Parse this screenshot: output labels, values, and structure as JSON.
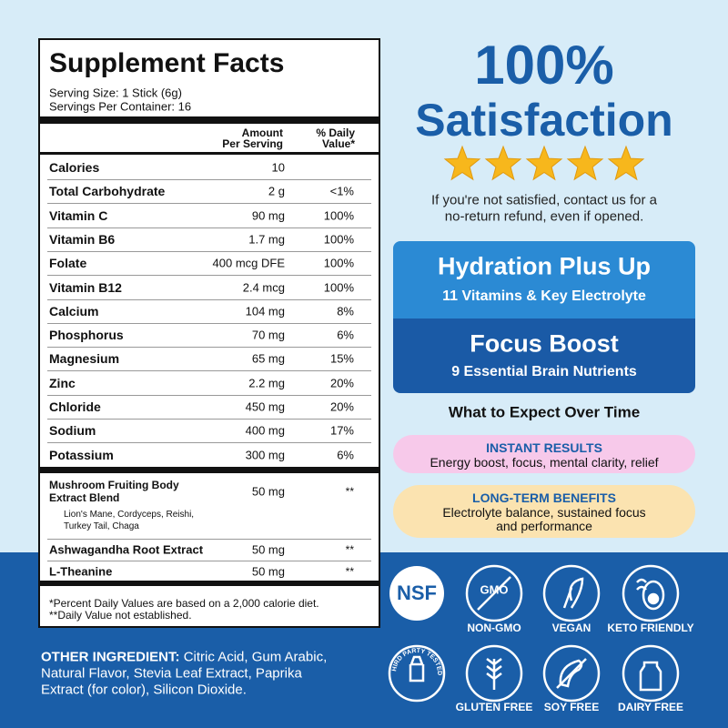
{
  "facts": {
    "title": "Supplement Facts",
    "serving_size": "Serving Size: 1 Stick (6g)",
    "servings": "Servings Per Container: 16",
    "header_amount": [
      "Amount",
      "Per Serving"
    ],
    "header_dv": [
      "% Daily",
      "Value*"
    ],
    "rows": [
      {
        "name": "Calories",
        "amount": "10"
      },
      {
        "name": "Total Carbohydrate",
        "amount": "2 g",
        "dv": "<1%"
      },
      {
        "name": "Vitamin C",
        "amount": "90 mg",
        "dv": "100%"
      },
      {
        "name": "Vitamin B6",
        "amount": "1.7 mg",
        "dv": "100%"
      },
      {
        "name": "Folate",
        "amount": "400 mcg DFE",
        "dv": "100%"
      },
      {
        "name": "Vitamin B12",
        "amount": "2.4 mcg",
        "dv": "100%"
      },
      {
        "name": "Calcium",
        "amount": "104 mg",
        "dv": "8%"
      },
      {
        "name": "Phosphorus",
        "amount": "70 mg",
        "dv": "6%"
      },
      {
        "name": "Magnesium",
        "amount": "65 mg",
        "dv": "15%"
      },
      {
        "name": "Zinc",
        "amount": "2.2 mg",
        "dv": "20%"
      },
      {
        "name": "Chloride",
        "amount": "450 mg",
        "dv": "20%"
      },
      {
        "name": "Sodium",
        "amount": "400 mg",
        "dv": "17%"
      },
      {
        "name": "Potassium",
        "amount": "300 mg",
        "dv": "6%"
      }
    ],
    "blends": [
      {
        "name": [
          "Mushroom Fruiting Body",
          "Extract Blend"
        ],
        "amount": "50 mg",
        "dv": "**",
        "detail": [
          "Lion's Mane, Cordyceps, Reishi,",
          "Turkey Tail, Chaga"
        ]
      },
      {
        "name": [
          "Ashwagandha Root Extract"
        ],
        "amount": "50 mg",
        "dv": "**"
      },
      {
        "name": [
          "L-Theanine"
        ],
        "amount": "50 mg",
        "dv": "**"
      }
    ],
    "footnotes": [
      "*Percent Daily Values are based on a 2,000 calorie diet.",
      "**Daily Value not established."
    ]
  },
  "ingredients": {
    "label": "OTHER INGREDIENT:",
    "lines": [
      "Citric Acid, Gum Arabic,",
      "Natural Flavor, Stevia Leaf Extract, Paprika",
      "Extract (for color), Silicon Dioxide."
    ]
  },
  "satisfaction": {
    "headline": [
      "100%",
      "Satisfaction"
    ],
    "rating": 5,
    "note": [
      "If you're not satisfied, contact us for a",
      "no-return refund, even if opened."
    ]
  },
  "products": [
    {
      "title": "Hydration Plus Up",
      "subtitle": "11 Vitamins & Key Electrolyte"
    },
    {
      "title": "Focus Boost",
      "subtitle": "9 Essential Brain Nutrients"
    }
  ],
  "expect": {
    "title": "What to Expect Over Time",
    "items": [
      {
        "title": "INSTANT RESULTS",
        "text": [
          "Energy boost, focus, mental clarity, relief"
        ]
      },
      {
        "title": "LONG-TERM BENEFITS",
        "text": [
          "Electrolyte balance, sustained focus",
          "and performance"
        ]
      }
    ]
  },
  "badges": [
    {
      "icon": "NSF"
    },
    {
      "icon": "GMO",
      "label": "NON-GMO"
    },
    {
      "label": "VEGAN"
    },
    {
      "label": "KETO FRIENDLY"
    },
    {
      "icon": "THIRD PARTY TESTED"
    },
    {
      "label": "GLUTEN FREE"
    },
    {
      "label": "SOY FREE"
    },
    {
      "label": "DAIRY FREE"
    }
  ]
}
